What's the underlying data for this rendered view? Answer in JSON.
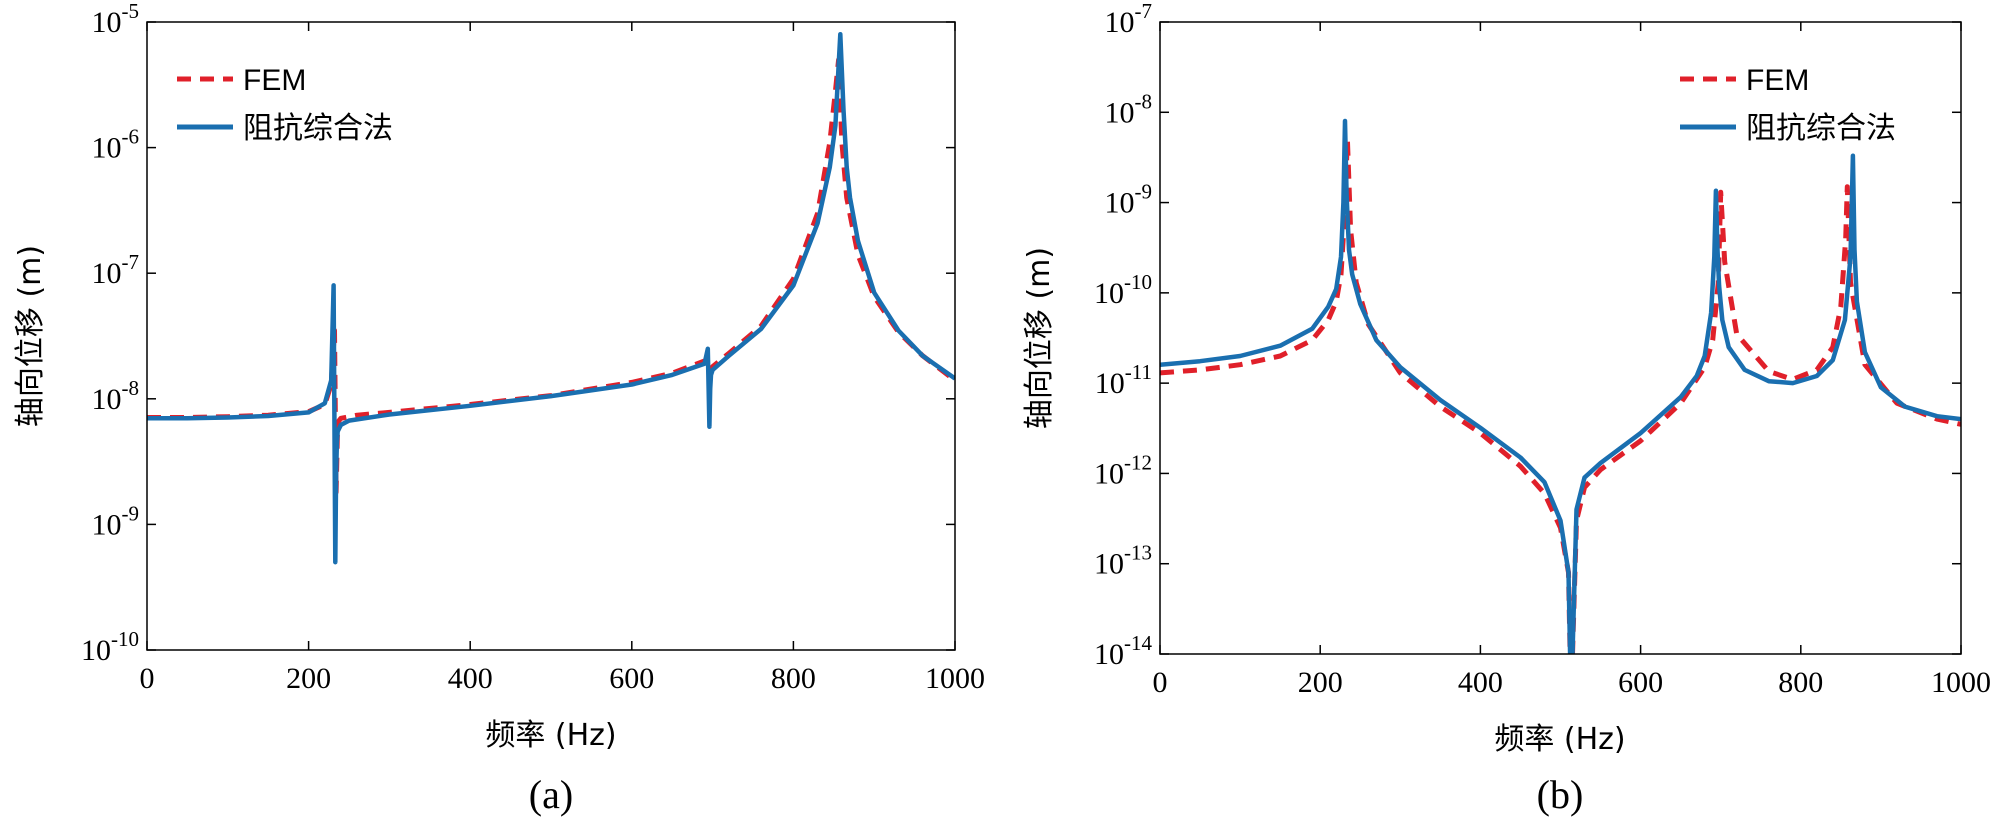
{
  "chart_data": [
    {
      "type": "line",
      "panel_label": "(a)",
      "xlabel": "频率 (Hz)",
      "ylabel": "轴向位移 (m)",
      "xlim": [
        0,
        1000
      ],
      "xticks": [
        0,
        200,
        400,
        600,
        800,
        1000
      ],
      "ylim_log10": [
        -10,
        -5
      ],
      "yticks_log10": [
        -10,
        -9,
        -8,
        -7,
        -6,
        -5
      ],
      "y_scale": "log",
      "grid": false,
      "legend_position": "top-left",
      "series": [
        {
          "name": "FEM",
          "color": "#e0202a",
          "style": "dashed",
          "x": [
            0,
            50,
            100,
            150,
            200,
            220,
            228,
            232,
            234,
            236,
            240,
            260,
            300,
            400,
            500,
            600,
            650,
            690,
            694,
            697,
            700,
            720,
            760,
            800,
            830,
            845,
            852,
            856,
            860,
            866,
            880,
            900,
            930,
            960,
            1000
          ],
          "y": [
            7.1e-09,
            7.1e-09,
            7.2e-09,
            7.4e-09,
            7.9e-09,
            9e-09,
            1.3e-08,
            3.5e-08,
            1.8e-09,
            6.5e-09,
            7e-09,
            7.4e-09,
            7.8e-09,
            9e-09,
            1.06e-08,
            1.35e-08,
            1.6e-08,
            2e-08,
            2.1e-08,
            1.7e-08,
            1.8e-08,
            2.3e-08,
            3.8e-08,
            9e-08,
            3e-07,
            1.1e-06,
            2.8e-06,
            5e-06,
            1.1e-06,
            4e-07,
            1.4e-07,
            6.5e-08,
            3.4e-08,
            2.2e-08,
            1.4e-08
          ]
        },
        {
          "name": "阻抗综合法",
          "color": "#1a6fb0",
          "style": "solid",
          "x": [
            0,
            50,
            100,
            150,
            200,
            220,
            228,
            231,
            233,
            234,
            235,
            236,
            240,
            250,
            300,
            400,
            500,
            600,
            650,
            690,
            694,
            696,
            697,
            698,
            700,
            720,
            760,
            800,
            830,
            845,
            852,
            858,
            862,
            866,
            870,
            880,
            900,
            930,
            960,
            1000
          ],
          "y": [
            7e-09,
            7e-09,
            7.1e-09,
            7.3e-09,
            7.8e-09,
            9.2e-09,
            1.4e-08,
            8e-08,
            5e-10,
            2.5e-09,
            4.5e-09,
            5.5e-09,
            6.2e-09,
            6.7e-09,
            7.5e-09,
            8.8e-09,
            1.05e-08,
            1.3e-08,
            1.55e-08,
            1.9e-08,
            2.5e-08,
            6e-09,
            1.2e-08,
            1.55e-08,
            1.7e-08,
            2.2e-08,
            3.6e-08,
            8e-08,
            2.5e-07,
            7e-07,
            1.5e-06,
            8e-06,
            2e-06,
            7e-07,
            4e-07,
            1.8e-07,
            7e-08,
            3.5e-08,
            2.2e-08,
            1.45e-08
          ]
        }
      ],
      "legend_labels": [
        "FEM",
        "阻抗综合法"
      ]
    },
    {
      "type": "line",
      "panel_label": "(b)",
      "xlabel": "频率 (Hz)",
      "ylabel": "轴向位移 (m)",
      "xlim": [
        0,
        1000
      ],
      "xticks": [
        0,
        200,
        400,
        600,
        800,
        1000
      ],
      "ylim_log10": [
        -14,
        -7
      ],
      "yticks_log10": [
        -14,
        -13,
        -12,
        -11,
        -10,
        -9,
        -8,
        -7
      ],
      "y_scale": "log",
      "grid": false,
      "legend_position": "top-right",
      "series": [
        {
          "name": "FEM",
          "color": "#e0202a",
          "style": "dashed",
          "x": [
            0,
            50,
            100,
            150,
            190,
            210,
            220,
            226,
            230,
            234,
            238,
            245,
            260,
            300,
            350,
            400,
            450,
            480,
            500,
            510,
            512,
            515,
            520,
            530,
            550,
            600,
            650,
            680,
            690,
            697,
            700,
            705,
            720,
            760,
            790,
            820,
            840,
            850,
            856,
            858,
            862,
            880,
            920,
            970,
            1000
          ],
          "y": [
            1.3e-11,
            1.4e-11,
            1.6e-11,
            2e-11,
            3e-11,
            5e-11,
            8e-11,
            1.6e-10,
            6e-10,
            5e-09,
            5e-10,
            1.3e-10,
            4.5e-11,
            1.3e-11,
            5.5e-12,
            2.8e-12,
            1.2e-12,
            6e-13,
            2.5e-13,
            8e-14,
            1e-14,
            1e-14,
            3e-13,
            7e-13,
            1.1e-12,
            2.3e-12,
            6e-12,
            1.5e-11,
            3e-11,
            1.3e-10,
            1.3e-09,
            2.2e-10,
            3.5e-11,
            1.35e-11,
            1.1e-11,
            1.4e-11,
            2.5e-11,
            7e-11,
            4e-10,
            1.5e-09,
            1.3e-10,
            1.6e-11,
            6e-12,
            4e-12,
            3.5e-12
          ]
        },
        {
          "name": "阻抗综合法",
          "color": "#1a6fb0",
          "style": "solid",
          "x": [
            0,
            50,
            100,
            150,
            190,
            210,
            220,
            226,
            229,
            231,
            233,
            236,
            240,
            250,
            270,
            300,
            350,
            400,
            450,
            480,
            500,
            510,
            512,
            515,
            520,
            530,
            550,
            600,
            650,
            670,
            680,
            688,
            692,
            694,
            696,
            698,
            702,
            710,
            730,
            760,
            790,
            820,
            840,
            855,
            862,
            865,
            867,
            870,
            880,
            900,
            930,
            970,
            1000
          ],
          "y": [
            1.6e-11,
            1.75e-11,
            2e-11,
            2.6e-11,
            4e-11,
            7e-11,
            1.1e-10,
            2.5e-10,
            1e-09,
            8e-09,
            1.2e-09,
            3e-10,
            1.6e-10,
            7.5e-11,
            3e-11,
            1.5e-11,
            6.5e-12,
            3.2e-12,
            1.5e-12,
            8e-13,
            3e-13,
            8e-14,
            1e-14,
            1e-14,
            4e-13,
            9e-13,
            1.3e-12,
            2.8e-12,
            7e-12,
            1.2e-11,
            2e-11,
            6e-11,
            2.5e-10,
            1.35e-09,
            3e-10,
            1.2e-10,
            5e-11,
            2.5e-11,
            1.4e-11,
            1.05e-11,
            1e-11,
            1.2e-11,
            1.8e-11,
            5e-11,
            2.5e-10,
            3.3e-09,
            3e-10,
            8e-11,
            2.2e-11,
            9e-12,
            5.5e-12,
            4.3e-12,
            4e-12
          ]
        }
      ],
      "legend_labels": [
        "FEM",
        "阻抗综合法"
      ]
    }
  ]
}
